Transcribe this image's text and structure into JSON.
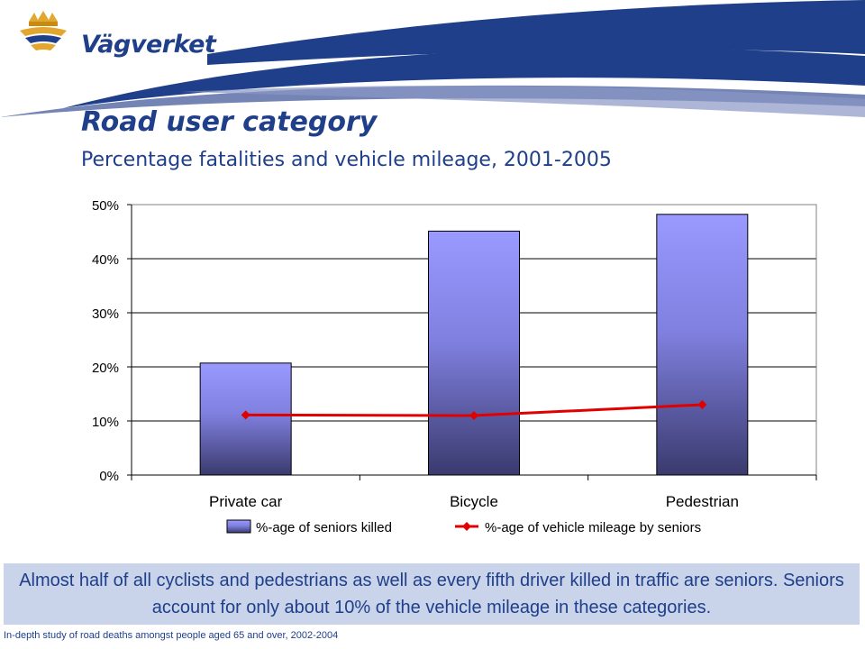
{
  "brand": {
    "logo_text": "Vägverket",
    "primary_color": "#1f3f8a",
    "accent_color": "#e2a72e"
  },
  "slide": {
    "title": "Road user category",
    "subtitle": "Percentage fatalities and vehicle mileage, 2001-2005",
    "callout": "Almost half of all cyclists and pedestrians as well as every fifth driver killed in traffic are seniors. Seniors account for only about 10% of the vehicle mileage in these categories.",
    "footer_source": "In-depth study of road deaths amongst people aged 65 and over, 2002-2004"
  },
  "chart_data": {
    "type": "bar",
    "categories": [
      "Private car",
      "Bicycle",
      "Pedestrian"
    ],
    "series": [
      {
        "name": "%-age of seniors killed",
        "type": "bar",
        "values": [
          20.7,
          45.1,
          48.2
        ],
        "color_top": "#9999ff",
        "color_bottom": "#3a3a6e"
      },
      {
        "name": "%-age of vehicle mileage by seniors",
        "type": "line",
        "values": [
          11.1,
          11.0,
          13.0
        ],
        "color": "#e00000"
      }
    ],
    "ylim": [
      0,
      50
    ],
    "yticks": [
      "0%",
      "10%",
      "20%",
      "30%",
      "40%",
      "50%"
    ],
    "ytick_values": [
      0,
      10,
      20,
      30,
      40,
      50
    ],
    "grid": true,
    "legend": "bottom"
  }
}
